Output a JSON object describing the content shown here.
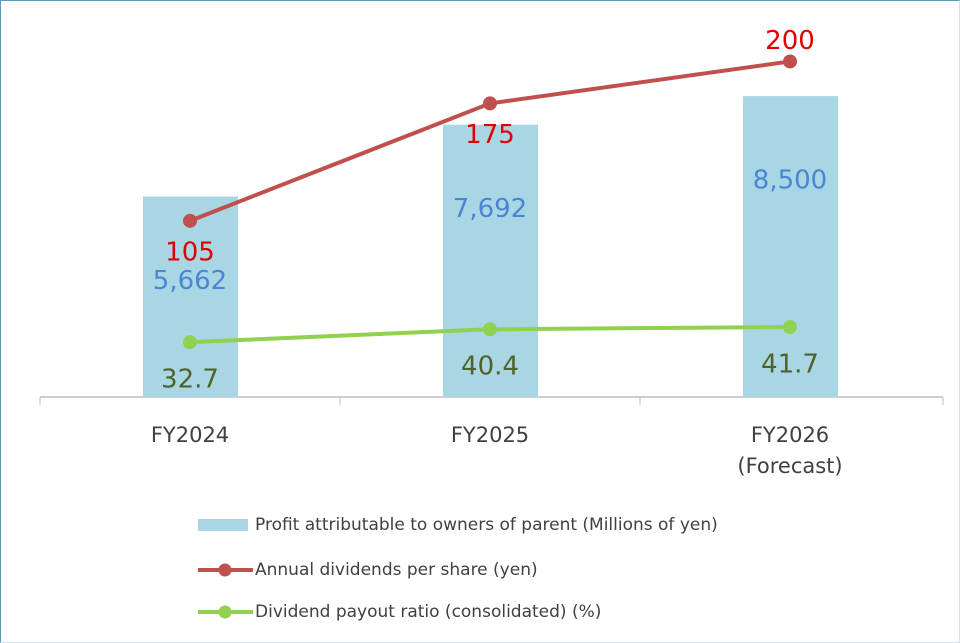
{
  "chart_data": {
    "type": "bar",
    "categories": [
      "FY2024",
      "FY2025",
      "FY2026\n(Forecast)"
    ],
    "ylim": [
      0,
      10000
    ],
    "y2lim": [
      0,
      211
    ],
    "series": [
      {
        "name": "Profit attributable to owners of parent (Millions of yen)",
        "type": "bar",
        "color": "#a9d6e5",
        "label_color": "#4a86d4",
        "values": [
          5662,
          7692,
          8500
        ],
        "value_labels": [
          "5,662",
          "7,692",
          "8,500"
        ]
      },
      {
        "name": "Annual dividends per share (yen)",
        "type": "line",
        "axis": "y2",
        "color": "#c0504d",
        "label_color": "#e00000",
        "values": [
          105,
          175,
          200
        ]
      },
      {
        "name": "Dividend payout ratio (consolidated) (%)",
        "type": "line",
        "axis": "y2",
        "color": "#92d050",
        "label_color": "#4f6228",
        "values": [
          32.7,
          40.4,
          41.7
        ]
      }
    ]
  }
}
